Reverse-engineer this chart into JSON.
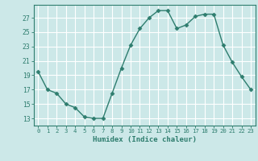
{
  "x": [
    0,
    1,
    2,
    3,
    4,
    5,
    6,
    7,
    8,
    9,
    10,
    11,
    12,
    13,
    14,
    15,
    16,
    17,
    18,
    19,
    20,
    21,
    22,
    23
  ],
  "y": [
    19.5,
    17.0,
    16.5,
    15.0,
    14.5,
    13.2,
    13.0,
    13.0,
    16.5,
    20.0,
    23.2,
    25.5,
    27.0,
    28.0,
    28.0,
    25.5,
    26.0,
    27.2,
    27.5,
    27.5,
    23.2,
    20.8,
    18.8,
    17.0
  ],
  "xlabel": "Humidex (Indice chaleur)",
  "xlim": [
    -0.5,
    23.5
  ],
  "ylim": [
    12.0,
    28.8
  ],
  "yticks": [
    13,
    15,
    17,
    19,
    21,
    23,
    25,
    27
  ],
  "xticks": [
    0,
    1,
    2,
    3,
    4,
    5,
    6,
    7,
    8,
    9,
    10,
    11,
    12,
    13,
    14,
    15,
    16,
    17,
    18,
    19,
    20,
    21,
    22,
    23
  ],
  "line_color": "#2e7d6e",
  "marker": "D",
  "marker_size": 2.5,
  "bg_color": "#cce8e8",
  "grid_color": "#ffffff",
  "axis_color": "#2e7d6e",
  "tick_label_color": "#2e7d6e",
  "xlabel_color": "#2e7d6e",
  "line_width": 1.0
}
